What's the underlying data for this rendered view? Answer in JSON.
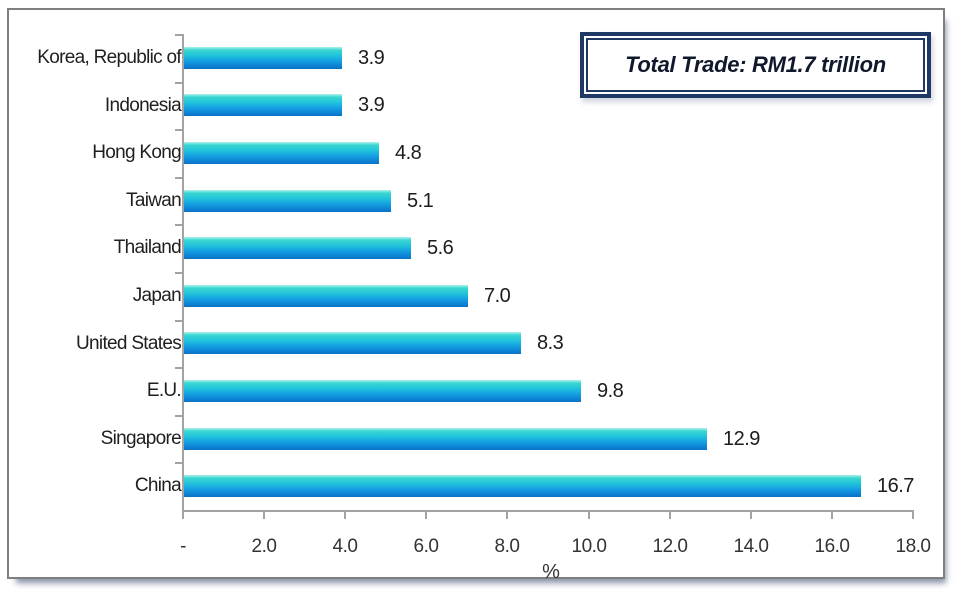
{
  "title_box": {
    "text": "Total Trade: RM1.7 trillion",
    "border_color": "#1f3864",
    "text_color": "#10182b"
  },
  "chart_data": {
    "type": "bar",
    "orientation": "horizontal",
    "title": "",
    "categories": [
      "Korea, Republic of",
      "Indonesia",
      "Hong Kong",
      "Taiwan",
      "Thailand",
      "Japan",
      "United States",
      "E.U.",
      "Singapore",
      "China"
    ],
    "values": [
      3.9,
      3.9,
      4.8,
      5.1,
      5.6,
      7.0,
      8.3,
      9.8,
      12.9,
      16.7
    ],
    "value_labels": [
      "3.9",
      "3.9",
      "4.8",
      "5.1",
      "5.6",
      "7.0",
      "8.3",
      "9.8",
      "12.9",
      "16.7"
    ],
    "x_ticks": [
      "-",
      "2.0",
      "4.0",
      "6.0",
      "8.0",
      "10.0",
      "12.0",
      "14.0",
      "16.0",
      "18.0"
    ],
    "x_tick_values": [
      0,
      2,
      4,
      6,
      8,
      10,
      12,
      14,
      16,
      18
    ],
    "xlim": [
      0,
      18
    ],
    "xlabel": "%",
    "grid": false,
    "legend": false,
    "annotation": "Total Trade: RM1.7 trillion",
    "bar_gradient_top": "#3ad6d2",
    "bar_gradient_mid": "#14a2e2",
    "bar_gradient_bottom": "#0b72c4",
    "axis_color": "#a3a3a3",
    "label_color": "#1f1f1f"
  }
}
